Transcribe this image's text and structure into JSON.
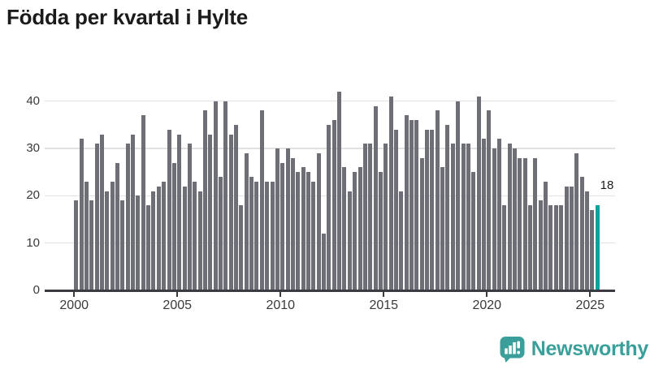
{
  "title": "Födda per kvartal i Hylte",
  "annotation_label": "18",
  "branding": {
    "name": "Newsworthy",
    "icon": "newsworthy-speech-bubble-chart-icon"
  },
  "colors": {
    "bar": "#6e6e76",
    "highlight": "#0ba19d",
    "brand_teal": "#3a9f9a",
    "axis": "#3a3a41",
    "gridline": "#e2e2e2",
    "text_dark": "#1b1b1b",
    "text_axis": "#3a3a3a"
  },
  "chart_data": {
    "type": "bar",
    "title": "Födda per kvartal i Hylte",
    "x_start": "2000 Q1",
    "x_end": "2025 Q2",
    "frequency": "quarterly",
    "values": [
      19,
      32,
      23,
      19,
      31,
      33,
      21,
      23,
      27,
      19,
      31,
      33,
      20,
      37,
      18,
      21,
      22,
      23,
      34,
      27,
      33,
      22,
      31,
      23,
      21,
      38,
      33,
      40,
      24,
      40,
      33,
      35,
      18,
      29,
      24,
      23,
      38,
      23,
      23,
      30,
      27,
      30,
      28,
      25,
      26,
      25,
      23,
      29,
      12,
      35,
      36,
      42,
      26,
      21,
      25,
      26,
      31,
      31,
      39,
      25,
      31,
      41,
      34,
      21,
      37,
      36,
      36,
      28,
      34,
      34,
      38,
      26,
      35,
      31,
      40,
      31,
      31,
      25,
      41,
      32,
      38,
      30,
      32,
      18,
      31,
      30,
      28,
      28,
      18,
      28,
      19,
      23,
      18,
      18,
      18,
      22,
      22,
      29,
      24,
      21,
      17,
      18
    ],
    "highlight_index": 101,
    "highlight_value_label": "18",
    "x_tick_labels": [
      "2000",
      "2005",
      "2010",
      "2015",
      "2020",
      "2025"
    ],
    "x_tick_every_n_bars": 20,
    "y_ticks": [
      0,
      10,
      20,
      30,
      40
    ],
    "ylim": [
      0,
      44
    ],
    "xlabel": "",
    "ylabel": "",
    "grid": "horizontal",
    "legend": "none"
  }
}
